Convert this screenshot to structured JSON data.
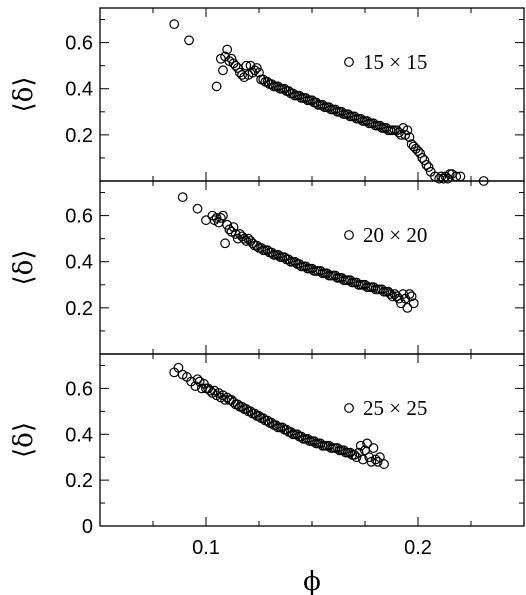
{
  "chart_data": [
    {
      "type": "scatter",
      "panel": "top",
      "xlim": [
        0.05,
        0.25
      ],
      "ylim": [
        0.0,
        0.75
      ],
      "ylabel": "⟨δ⟩",
      "xlabel": "",
      "yticks": [
        0.2,
        0.4,
        0.6
      ],
      "ytick_labels": [
        "0.2",
        "0.4",
        "0.6"
      ],
      "legend": {
        "label": "15 × 15",
        "position": "top-right",
        "marker": "open-circle"
      },
      "x": [
        0.085,
        0.092,
        0.105,
        0.107,
        0.108,
        0.109,
        0.11,
        0.111,
        0.112,
        0.113,
        0.114,
        0.115,
        0.116,
        0.117,
        0.118,
        0.119,
        0.12,
        0.121,
        0.122,
        0.123,
        0.124,
        0.125,
        0.126,
        0.127,
        0.128,
        0.129,
        0.13,
        0.131,
        0.132,
        0.133,
        0.134,
        0.135,
        0.136,
        0.137,
        0.138,
        0.139,
        0.14,
        0.141,
        0.142,
        0.143,
        0.144,
        0.145,
        0.146,
        0.147,
        0.148,
        0.149,
        0.15,
        0.151,
        0.152,
        0.153,
        0.154,
        0.155,
        0.156,
        0.157,
        0.158,
        0.159,
        0.16,
        0.161,
        0.162,
        0.163,
        0.164,
        0.165,
        0.166,
        0.167,
        0.168,
        0.169,
        0.17,
        0.171,
        0.172,
        0.173,
        0.174,
        0.175,
        0.176,
        0.177,
        0.178,
        0.179,
        0.18,
        0.181,
        0.182,
        0.183,
        0.184,
        0.185,
        0.186,
        0.187,
        0.188,
        0.189,
        0.19,
        0.191,
        0.192,
        0.193,
        0.194,
        0.195,
        0.196,
        0.197,
        0.198,
        0.199,
        0.2,
        0.201,
        0.202,
        0.203,
        0.204,
        0.205,
        0.206,
        0.208,
        0.21,
        0.211,
        0.212,
        0.213,
        0.214,
        0.215,
        0.216,
        0.218,
        0.22,
        0.231
      ],
      "y": [
        0.68,
        0.61,
        0.41,
        0.53,
        0.48,
        0.54,
        0.57,
        0.52,
        0.53,
        0.51,
        0.5,
        0.49,
        0.47,
        0.46,
        0.45,
        0.5,
        0.46,
        0.5,
        0.47,
        0.48,
        0.49,
        0.47,
        0.44,
        0.44,
        0.43,
        0.43,
        0.42,
        0.42,
        0.41,
        0.41,
        0.41,
        0.4,
        0.4,
        0.4,
        0.39,
        0.39,
        0.38,
        0.38,
        0.37,
        0.37,
        0.37,
        0.36,
        0.36,
        0.36,
        0.35,
        0.35,
        0.35,
        0.34,
        0.34,
        0.33,
        0.33,
        0.33,
        0.32,
        0.32,
        0.32,
        0.31,
        0.31,
        0.31,
        0.3,
        0.3,
        0.3,
        0.29,
        0.29,
        0.29,
        0.28,
        0.28,
        0.28,
        0.27,
        0.27,
        0.27,
        0.26,
        0.26,
        0.26,
        0.25,
        0.25,
        0.25,
        0.24,
        0.24,
        0.24,
        0.23,
        0.23,
        0.23,
        0.22,
        0.22,
        0.22,
        0.22,
        0.22,
        0.21,
        0.2,
        0.23,
        0.2,
        0.22,
        0.19,
        0.16,
        0.15,
        0.14,
        0.13,
        0.12,
        0.1,
        0.09,
        0.07,
        0.06,
        0.04,
        0.02,
        0.01,
        0.02,
        0.01,
        0.02,
        0.01,
        0.03,
        0.03,
        0.02,
        0.02,
        0.0
      ]
    },
    {
      "type": "scatter",
      "panel": "middle",
      "xlim": [
        0.05,
        0.25
      ],
      "ylim": [
        0.0,
        0.75
      ],
      "ylabel": "⟨δ⟩",
      "xlabel": "",
      "yticks": [
        0.2,
        0.4,
        0.6
      ],
      "ytick_labels": [
        "0.2",
        "0.4",
        "0.6"
      ],
      "legend": {
        "label": "20 × 20",
        "position": "top-right",
        "marker": "open-circle"
      },
      "x": [
        0.089,
        0.096,
        0.1,
        0.103,
        0.104,
        0.105,
        0.106,
        0.107,
        0.108,
        0.109,
        0.11,
        0.111,
        0.112,
        0.113,
        0.114,
        0.115,
        0.116,
        0.117,
        0.118,
        0.119,
        0.12,
        0.121,
        0.122,
        0.123,
        0.124,
        0.125,
        0.126,
        0.127,
        0.128,
        0.129,
        0.13,
        0.131,
        0.132,
        0.133,
        0.134,
        0.135,
        0.136,
        0.137,
        0.138,
        0.139,
        0.14,
        0.141,
        0.142,
        0.143,
        0.144,
        0.145,
        0.146,
        0.147,
        0.148,
        0.149,
        0.15,
        0.151,
        0.152,
        0.153,
        0.154,
        0.155,
        0.156,
        0.157,
        0.158,
        0.159,
        0.16,
        0.161,
        0.162,
        0.163,
        0.164,
        0.165,
        0.166,
        0.167,
        0.168,
        0.169,
        0.17,
        0.171,
        0.172,
        0.173,
        0.174,
        0.175,
        0.176,
        0.177,
        0.178,
        0.179,
        0.18,
        0.181,
        0.182,
        0.183,
        0.184,
        0.185,
        0.186,
        0.187,
        0.188,
        0.189,
        0.19,
        0.191,
        0.192,
        0.193,
        0.194,
        0.195,
        0.196,
        0.197,
        0.198
      ],
      "y": [
        0.68,
        0.63,
        0.58,
        0.6,
        0.58,
        0.59,
        0.57,
        0.59,
        0.6,
        0.48,
        0.56,
        0.54,
        0.53,
        0.55,
        0.52,
        0.5,
        0.52,
        0.51,
        0.5,
        0.49,
        0.5,
        0.49,
        0.48,
        0.47,
        0.47,
        0.46,
        0.46,
        0.45,
        0.45,
        0.45,
        0.44,
        0.44,
        0.43,
        0.43,
        0.43,
        0.42,
        0.42,
        0.42,
        0.41,
        0.41,
        0.4,
        0.4,
        0.4,
        0.39,
        0.39,
        0.38,
        0.38,
        0.38,
        0.37,
        0.37,
        0.37,
        0.36,
        0.36,
        0.36,
        0.36,
        0.35,
        0.35,
        0.35,
        0.34,
        0.34,
        0.34,
        0.34,
        0.33,
        0.33,
        0.33,
        0.32,
        0.32,
        0.32,
        0.32,
        0.31,
        0.31,
        0.31,
        0.3,
        0.3,
        0.3,
        0.3,
        0.29,
        0.29,
        0.29,
        0.29,
        0.28,
        0.28,
        0.28,
        0.28,
        0.27,
        0.27,
        0.27,
        0.26,
        0.25,
        0.26,
        0.25,
        0.24,
        0.22,
        0.26,
        0.24,
        0.2,
        0.26,
        0.25,
        0.22
      ]
    },
    {
      "type": "scatter",
      "panel": "bottom",
      "xlim": [
        0.05,
        0.25
      ],
      "ylim": [
        0.0,
        0.75
      ],
      "ylabel": "⟨δ⟩",
      "xlabel": "ϕ",
      "xticks": [
        0.1,
        0.2
      ],
      "xtick_labels": [
        "0.1",
        "0.2"
      ],
      "yticks": [
        0.0,
        0.2,
        0.4,
        0.6
      ],
      "ytick_labels": [
        "0",
        "0.2",
        "0.4",
        "0.6"
      ],
      "legend": {
        "label": "25 × 25",
        "position": "top-right",
        "marker": "open-circle"
      },
      "x": [
        0.085,
        0.087,
        0.089,
        0.091,
        0.093,
        0.095,
        0.096,
        0.097,
        0.098,
        0.099,
        0.1,
        0.101,
        0.102,
        0.103,
        0.104,
        0.105,
        0.106,
        0.107,
        0.108,
        0.109,
        0.11,
        0.111,
        0.112,
        0.113,
        0.114,
        0.115,
        0.116,
        0.117,
        0.118,
        0.119,
        0.12,
        0.121,
        0.122,
        0.123,
        0.124,
        0.125,
        0.126,
        0.127,
        0.128,
        0.129,
        0.13,
        0.131,
        0.132,
        0.133,
        0.134,
        0.135,
        0.136,
        0.137,
        0.138,
        0.139,
        0.14,
        0.141,
        0.142,
        0.143,
        0.144,
        0.145,
        0.146,
        0.147,
        0.148,
        0.149,
        0.15,
        0.151,
        0.152,
        0.153,
        0.154,
        0.155,
        0.156,
        0.157,
        0.158,
        0.159,
        0.16,
        0.161,
        0.162,
        0.163,
        0.164,
        0.165,
        0.166,
        0.167,
        0.168,
        0.169,
        0.17,
        0.171,
        0.172,
        0.173,
        0.174,
        0.175,
        0.176,
        0.177,
        0.178,
        0.179,
        0.18,
        0.181,
        0.182,
        0.184
      ],
      "y": [
        0.67,
        0.69,
        0.66,
        0.65,
        0.63,
        0.61,
        0.64,
        0.63,
        0.6,
        0.62,
        0.6,
        0.6,
        0.59,
        0.58,
        0.59,
        0.57,
        0.58,
        0.56,
        0.57,
        0.55,
        0.56,
        0.55,
        0.55,
        0.54,
        0.53,
        0.53,
        0.52,
        0.52,
        0.51,
        0.51,
        0.5,
        0.5,
        0.49,
        0.49,
        0.48,
        0.48,
        0.47,
        0.47,
        0.46,
        0.46,
        0.45,
        0.45,
        0.44,
        0.44,
        0.43,
        0.43,
        0.43,
        0.42,
        0.42,
        0.41,
        0.41,
        0.4,
        0.4,
        0.4,
        0.39,
        0.39,
        0.38,
        0.38,
        0.38,
        0.37,
        0.37,
        0.37,
        0.36,
        0.36,
        0.36,
        0.35,
        0.35,
        0.35,
        0.35,
        0.34,
        0.34,
        0.34,
        0.34,
        0.33,
        0.33,
        0.33,
        0.32,
        0.32,
        0.32,
        0.31,
        0.31,
        0.3,
        0.32,
        0.35,
        0.29,
        0.33,
        0.36,
        0.3,
        0.28,
        0.34,
        0.29,
        0.28,
        0.3,
        0.27
      ]
    }
  ]
}
